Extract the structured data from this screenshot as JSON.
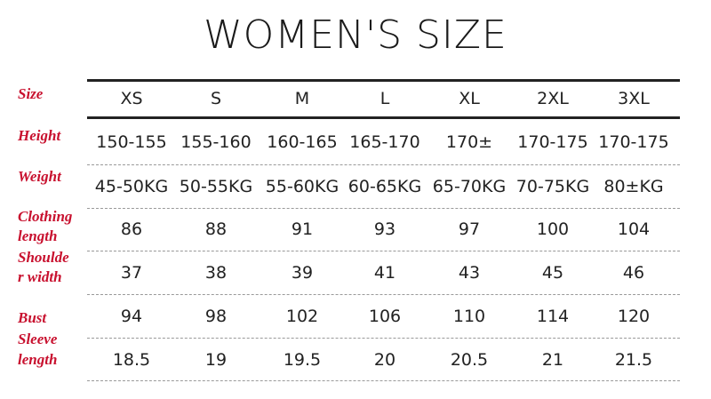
{
  "title": "WOMEN'S SIZE",
  "colors": {
    "label": "#c8102e",
    "text": "#222222"
  },
  "row_labels": [
    "Size",
    "Height",
    "Weight",
    "Clothing length",
    "Shoulder width",
    "Bust",
    "Sleeve length"
  ],
  "label_lines": [
    [
      "Size"
    ],
    [
      "Height"
    ],
    [
      "Weight"
    ],
    [
      "Clothing",
      "length"
    ],
    [
      "Shoulde",
      "r width"
    ],
    [
      "Bust"
    ],
    [
      "Sleeve",
      "length"
    ]
  ],
  "sizes": [
    "XS",
    "S",
    "M",
    "L",
    "XL",
    "2XL",
    "3XL"
  ],
  "rows": [
    [
      "150-155",
      "155-160",
      "160-165",
      "165-170",
      "170±",
      "170-175",
      "170-175"
    ],
    [
      "45-50KG",
      "50-55KG",
      "55-60KG",
      "60-65KG",
      "65-70KG",
      "70-75KG",
      "80±KG"
    ],
    [
      "86",
      "88",
      "91",
      "93",
      "97",
      "100",
      "104"
    ],
    [
      "37",
      "38",
      "39",
      "41",
      "43",
      "45",
      "46"
    ],
    [
      "94",
      "98",
      "102",
      "106",
      "110",
      "114",
      "120"
    ],
    [
      "18.5",
      "19",
      "19.5",
      "20",
      "20.5",
      "21",
      "21.5"
    ]
  ]
}
